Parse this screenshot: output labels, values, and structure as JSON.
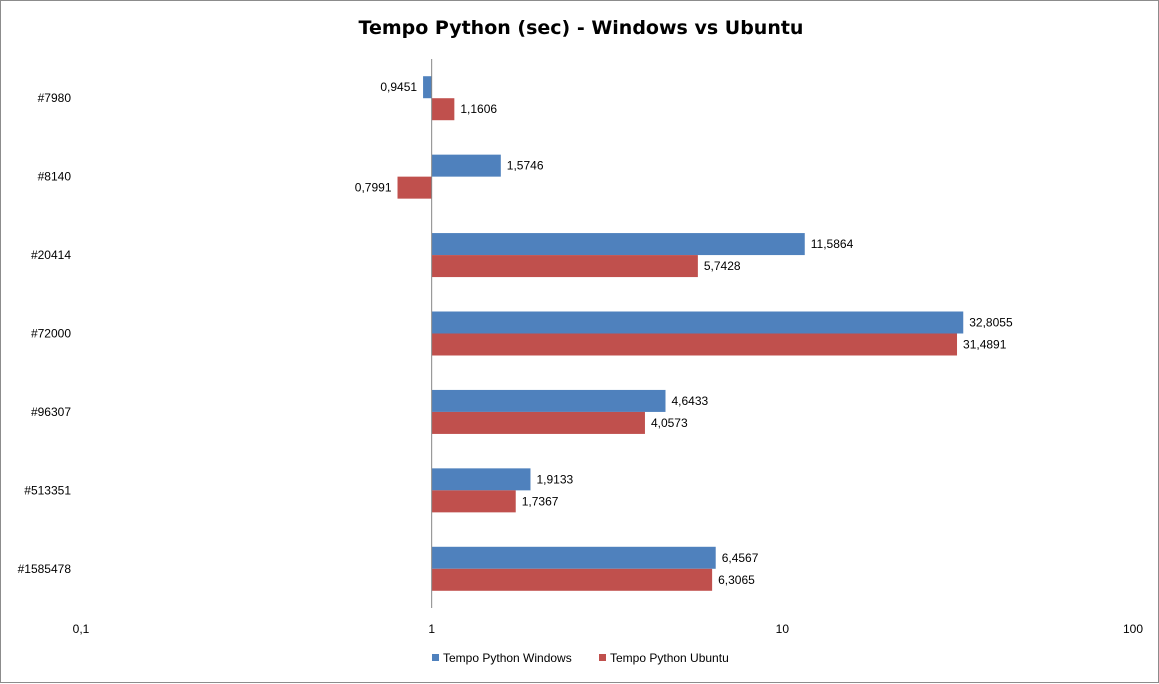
{
  "chart_data": {
    "type": "bar",
    "orientation": "horizontal",
    "title": "Tempo Python (sec) - Windows vs Ubuntu",
    "categories": [
      "#7980",
      "#8140",
      "#20414",
      "#72000",
      "#96307",
      "#513351",
      "#1585478"
    ],
    "series": [
      {
        "name": "Tempo Python Windows",
        "color": "#4F81BD",
        "values": [
          0.9451,
          1.5746,
          11.5864,
          32.8055,
          4.6433,
          1.9133,
          6.4567
        ],
        "labels": [
          "0,9451",
          "1,5746",
          "11,5864",
          "32,8055",
          "4,6433",
          "1,9133",
          "6,4567"
        ]
      },
      {
        "name": "Tempo Python Ubuntu",
        "color": "#C0504D",
        "values": [
          1.1606,
          0.7991,
          5.7428,
          31.4891,
          4.0573,
          1.7367,
          6.3065
        ],
        "labels": [
          "1,1606",
          "0,7991",
          "5,7428",
          "31,4891",
          "4,0573",
          "1,7367",
          "6,3065"
        ]
      }
    ],
    "x_scale": "log",
    "xlim": [
      0.1,
      100
    ],
    "x_ticks": [
      0.1,
      1,
      10,
      100
    ],
    "x_tick_labels": [
      "0,1",
      "1",
      "10",
      "100"
    ],
    "x_crosses_at": 1,
    "grid": false,
    "legend": "bottom"
  }
}
